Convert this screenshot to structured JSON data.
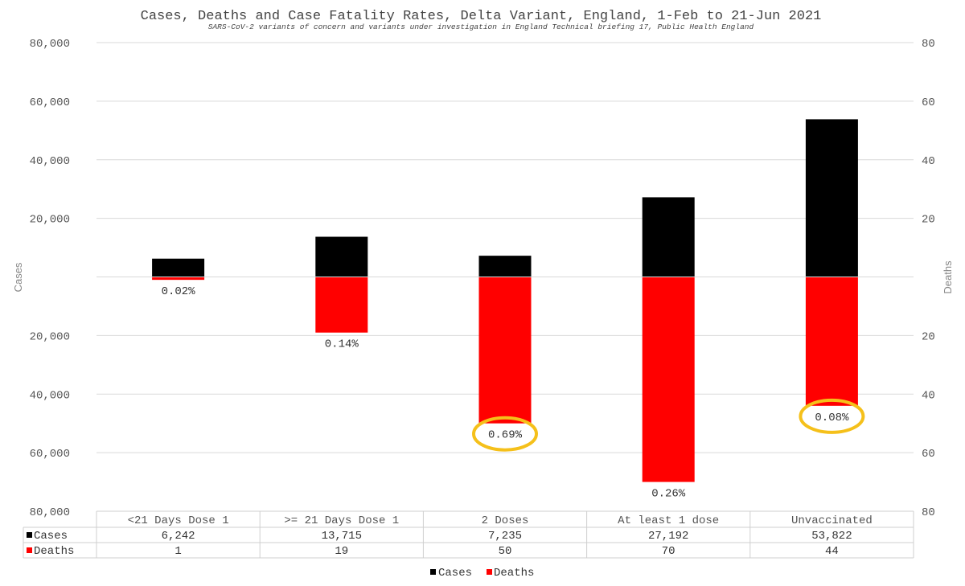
{
  "chart_data": {
    "type": "bar",
    "title": "Cases, Deaths and Case Fatality Rates, Delta Variant, England, 1-Feb to 21-Jun 2021",
    "subtitle": "SARS-CoV-2 variants of concern and variants under investigation in England Technical briefing 17, Public Health England",
    "categories": [
      "<21 Days Dose 1",
      ">= 21 Days Dose 1",
      "2 Doses",
      "At least 1 dose",
      "Unvaccinated"
    ],
    "series": [
      {
        "name": "Cases",
        "color": "#000000",
        "axis": "left",
        "direction": "up",
        "values": [
          6242,
          13715,
          7235,
          27192,
          53822
        ],
        "table_labels": [
          "6,242",
          "13,715",
          "7,235",
          "27,192",
          "53,822"
        ]
      },
      {
        "name": "Deaths",
        "color": "#ff0000",
        "axis": "right",
        "direction": "down",
        "values": [
          1,
          19,
          50,
          70,
          44
        ],
        "table_labels": [
          "1",
          "19",
          "50",
          "70",
          "44"
        ]
      }
    ],
    "case_fatality_rates": [
      "0.02%",
      "0.14%",
      "0.69%",
      "0.26%",
      "0.08%"
    ],
    "highlighted": [
      false,
      false,
      true,
      false,
      true
    ],
    "highlight_color": "#f5c01a",
    "left_axis": {
      "label": "Cases",
      "range": [
        -80000,
        80000
      ],
      "tick_values": [
        80000,
        60000,
        40000,
        20000,
        -20000,
        -40000,
        -60000,
        -80000
      ],
      "tick_labels": [
        "80,000",
        "60,000",
        "40,000",
        "20,000",
        "20,000",
        "40,000",
        "60,000",
        "80,000"
      ]
    },
    "right_axis": {
      "label": "Deaths",
      "range": [
        -80,
        80
      ],
      "tick_values": [
        80,
        60,
        40,
        20,
        -20,
        -40,
        -60,
        -80
      ],
      "tick_labels": [
        "80",
        "60",
        "40",
        "20",
        "20",
        "40",
        "60",
        "80"
      ]
    },
    "grid": true,
    "legend": {
      "placement": "bottom",
      "entries": [
        "Cases",
        "Deaths"
      ]
    }
  }
}
